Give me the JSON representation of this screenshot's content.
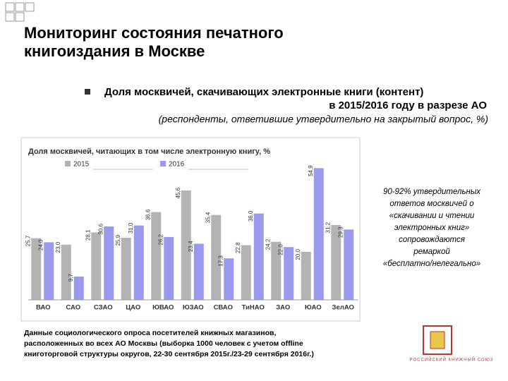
{
  "title": [
    "Мониторинг состояния печатного",
    "книгоиздания в Москве"
  ],
  "heading": [
    "Доля москвичей, скачивающих электронные книги (контент)",
    "в 2015/2016 году в разрезе АО"
  ],
  "subheading": "(респонденты, ответившие утвердительно на закрытый вопрос, %)",
  "chart_data": {
    "type": "bar",
    "title": "Доля москвичей, читающих в том числе электронную книгу, %",
    "categories": [
      "ВАО",
      "САО",
      "СЗАО",
      "ЦАО",
      "ЮВАО",
      "ЮЗАО",
      "СВАО",
      "ТиНАО",
      "ЗАО",
      "ЮАО",
      "ЗелАО"
    ],
    "series": [
      {
        "name": "2015",
        "color": "#b3b3b3",
        "values": [
          25.7,
          23.0,
          28.1,
          25.9,
          36.6,
          45.6,
          35.4,
          22.8,
          24.2,
          20.0,
          31.2
        ],
        "value_labels": [
          "25,7",
          "23,0",
          "28,1",
          "25,9",
          "36,6",
          "45,6",
          "35,4",
          "22,8",
          "24,2",
          "20,0",
          "31,2"
        ]
      },
      {
        "name": "2016",
        "color": "#9999ee",
        "values": [
          24.0,
          9.7,
          30.6,
          31.0,
          26.2,
          23.4,
          17.3,
          36.0,
          22.0,
          54.9,
          29.3
        ],
        "value_labels": [
          "24,0",
          "9,7",
          "30,6",
          "31,0",
          "26,2",
          "23,4",
          "17,3",
          "36,0",
          "22,0",
          "54,9",
          "29,3"
        ]
      }
    ]
  },
  "side_note": [
    "90-92% утвердительных",
    "ответов москвичей о",
    "«скачивании и чтении",
    "электронных книг»",
    "сопровождаются",
    "ремаркой",
    "«бесплатно/нелегально»"
  ],
  "footnote": [
    "Данные социологического опроса посетителей книжных магазинов,",
    "расположенных во всех АО Москвы (выборка 1000 человек с учетом offline",
    "книготорговой структуры округов, 22-30 сентября 2015г./23-29 сентября 2016г.)"
  ],
  "logo_text": "РОССИЙСКИЙ КНИЖНЫЙ СОЮЗ"
}
